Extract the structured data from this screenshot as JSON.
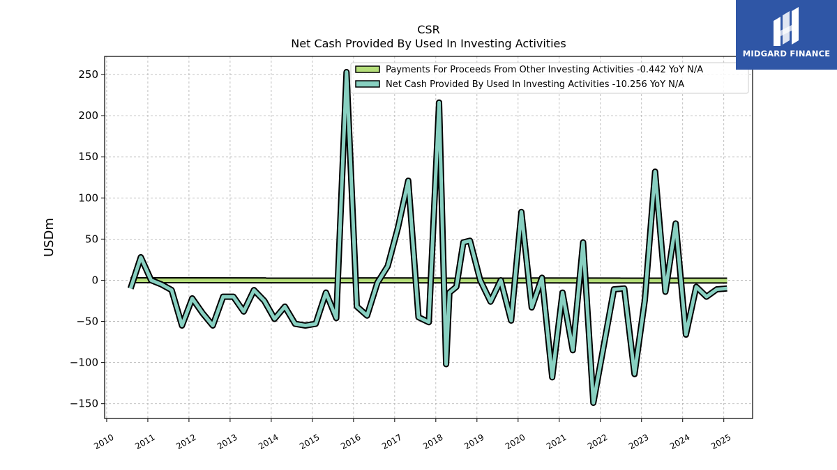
{
  "chart_data": {
    "type": "line",
    "title": "CSR",
    "subtitle": "Net Cash Provided By Used In Investing Activities",
    "xlabel": "",
    "ylabel": "USDm",
    "ylim": [
      -168,
      272
    ],
    "xlim": [
      2009.95,
      2025.7
    ],
    "y_ticks": [
      250,
      200,
      150,
      100,
      50,
      0,
      -50,
      -100,
      -150
    ],
    "y_tick_labels": [
      "250",
      "200",
      "150",
      "100",
      "50",
      "0",
      "−50",
      "−100",
      "−150"
    ],
    "x_ticks": [
      2010,
      2011,
      2012,
      2013,
      2014,
      2015,
      2016,
      2017,
      2018,
      2019,
      2020,
      2021,
      2022,
      2023,
      2024,
      2025
    ],
    "x_tick_labels": [
      "2010",
      "2011",
      "2012",
      "2013",
      "2014",
      "2015",
      "2016",
      "2017",
      "2018",
      "2019",
      "2020",
      "2021",
      "2022",
      "2023",
      "2024",
      "2025"
    ],
    "grid": true,
    "legend_position": "top-right",
    "series": [
      {
        "name": "Payments For Proceeds From Other Investing Activities",
        "legend_label": "Payments For Proceeds From Other Investing Activities  -0.442 YoY N/A",
        "color": "#b5de7a",
        "x": [
          2010.58,
          2025.08
        ],
        "values": [
          0.0,
          -0.4
        ]
      },
      {
        "name": "Net Cash Provided By Used In Investing Activities",
        "legend_label": "Net Cash Provided By Used In Investing Activities  -10.256 YoY N/A",
        "color": "#88d0c1",
        "x": [
          2010.58,
          2010.83,
          2011.08,
          2011.33,
          2011.58,
          2011.83,
          2012.08,
          2012.33,
          2012.58,
          2012.83,
          2013.08,
          2013.33,
          2013.58,
          2013.83,
          2014.08,
          2014.33,
          2014.58,
          2014.83,
          2015.08,
          2015.33,
          2015.58,
          2015.83,
          2016.08,
          2016.33,
          2016.58,
          2016.83,
          2017.08,
          2017.33,
          2017.58,
          2017.83,
          2018.08,
          2018.25,
          2018.33,
          2018.5,
          2018.67,
          2018.83,
          2019.08,
          2019.33,
          2019.58,
          2019.83,
          2020.08,
          2020.33,
          2020.58,
          2020.83,
          2021.08,
          2021.33,
          2021.58,
          2021.83,
          2022.08,
          2022.33,
          2022.58,
          2022.83,
          2023.08,
          2023.33,
          2023.58,
          2023.83,
          2024.08,
          2024.33,
          2024.58,
          2024.83,
          2025.08
        ],
        "values": [
          -10,
          28,
          0,
          -5,
          -12,
          -55,
          -22,
          -40,
          -55,
          -20,
          -20,
          -38,
          -12,
          -25,
          -47,
          -32,
          -53,
          -55,
          -53,
          -15,
          -46,
          253,
          -32,
          -43,
          -3,
          17,
          64,
          121,
          -45,
          -51,
          216,
          -102,
          -15,
          -8,
          46,
          48,
          0,
          -26,
          0,
          -49,
          83,
          -33,
          3,
          -118,
          -15,
          -85,
          46,
          -149,
          -80,
          -11,
          -10,
          -114,
          -24,
          132,
          -14,
          69,
          -66,
          -8,
          -20,
          -11,
          -10
        ]
      }
    ]
  },
  "logo": {
    "text": "MIDGARD FINANCE"
  }
}
